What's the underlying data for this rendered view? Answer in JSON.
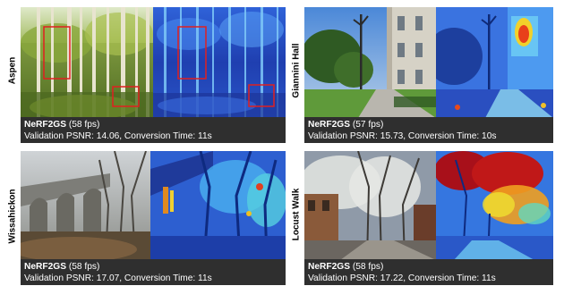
{
  "figure": {
    "scenes": [
      {
        "name": "Aspen",
        "method": "NeRF2GS",
        "fps": "(58 fps)",
        "metrics": "Validation PSNR: 14.06, Conversion Time: 11s"
      },
      {
        "name": "Giannini Hall",
        "method": "NeRF2GS",
        "fps": "(57 fps)",
        "metrics": "Validation PSNR: 15.73, Conversion Time: 10s"
      },
      {
        "name": "Wissahickon",
        "method": "NeRF2GS",
        "fps": "(58 fps)",
        "metrics": "Validation PSNR: 17.07, Conversion Time: 11s"
      },
      {
        "name": "Locust Walk",
        "method": "NeRF2GS",
        "fps": "(58 fps)",
        "metrics": "Validation PSNR: 17.22, Conversion Time: 11s"
      }
    ],
    "colors": {
      "caption_bg": "#2f2f2f",
      "roi_box": "#e02020"
    }
  }
}
